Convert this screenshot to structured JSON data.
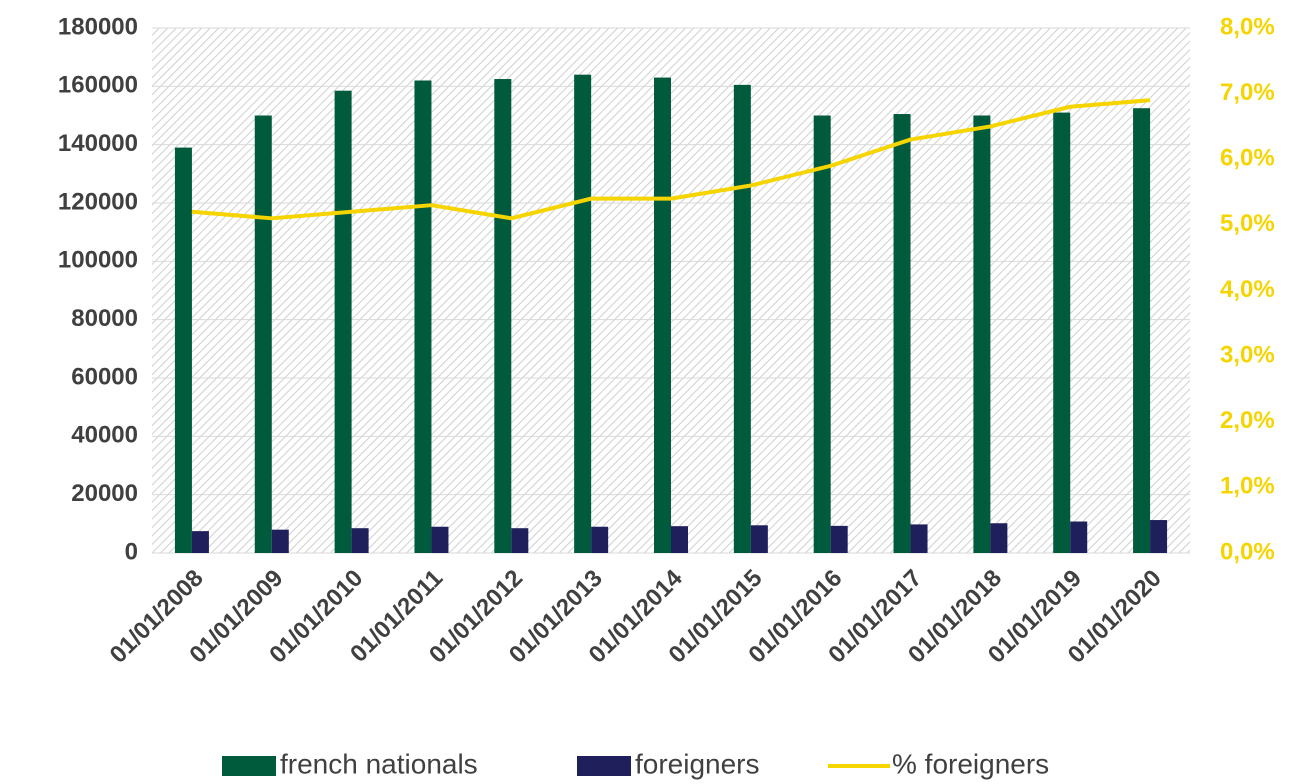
{
  "chart_data": {
    "type": "bar",
    "categories": [
      "01/01/2008",
      "01/01/2009",
      "01/01/2010",
      "01/01/2011",
      "01/01/2012",
      "01/01/2013",
      "01/01/2014",
      "01/01/2015",
      "01/01/2016",
      "01/01/2017",
      "01/01/2018",
      "01/01/2019",
      "01/01/2020"
    ],
    "series": [
      {
        "name": "french nationals",
        "color": "#005a3c",
        "type": "bar",
        "values": [
          139000,
          150000,
          158500,
          162000,
          162500,
          164000,
          163000,
          160500,
          150000,
          150500,
          150000,
          151000,
          152500
        ]
      },
      {
        "name": "foreigners",
        "color": "#1f1f5c",
        "type": "bar",
        "values": [
          7500,
          8000,
          8500,
          9000,
          8500,
          9000,
          9200,
          9500,
          9300,
          9800,
          10200,
          10800,
          11300
        ]
      },
      {
        "name": "% foreigners",
        "color": "#f5d400",
        "type": "line",
        "axis": "y2",
        "values": [
          5.2,
          5.1,
          5.2,
          5.3,
          5.1,
          5.4,
          5.4,
          5.6,
          5.9,
          6.3,
          6.5,
          6.8,
          6.9
        ]
      }
    ],
    "ylim": [
      0,
      180000
    ],
    "yticks": [
      0,
      20000,
      40000,
      60000,
      80000,
      100000,
      120000,
      140000,
      160000,
      180000
    ],
    "y2lim": [
      0,
      8
    ],
    "y2ticks": [
      {
        "value": 0,
        "label": "0,0%"
      },
      {
        "value": 1,
        "label": "1,0%"
      },
      {
        "value": 2,
        "label": "2,0%"
      },
      {
        "value": 3,
        "label": "3,0%"
      },
      {
        "value": 4,
        "label": "4,0%"
      },
      {
        "value": 5,
        "label": "5,0%"
      },
      {
        "value": 6,
        "label": "6,0%"
      },
      {
        "value": 7,
        "label": "7,0%"
      },
      {
        "value": 8,
        "label": "8,0%"
      }
    ],
    "grid": true,
    "legend": "bottom"
  }
}
